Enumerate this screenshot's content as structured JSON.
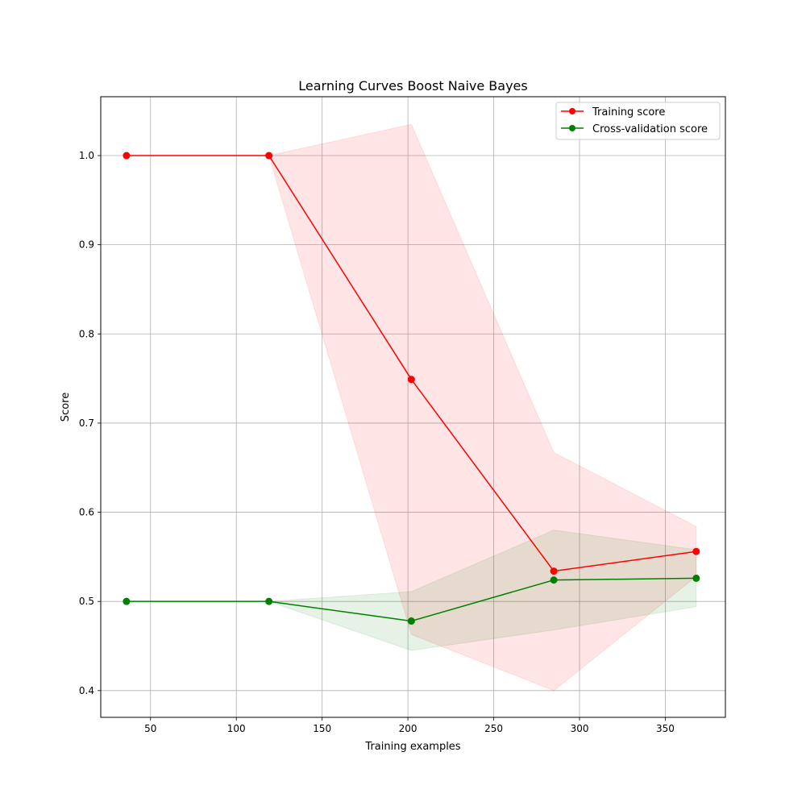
{
  "chart_data": {
    "type": "line",
    "title": "Learning Curves Boost Naive Bayes",
    "xlabel": "Training examples",
    "ylabel": "Score",
    "xlim": [
      21,
      385
    ],
    "ylim": [
      0.37,
      1.066
    ],
    "xticks": [
      50,
      100,
      150,
      200,
      250,
      300,
      350
    ],
    "xtick_labels": [
      "50",
      "100",
      "150",
      "200",
      "250",
      "300",
      "350"
    ],
    "yticks": [
      0.4,
      0.5,
      0.6,
      0.7,
      0.8,
      0.9,
      1.0
    ],
    "ytick_labels": [
      "0.4",
      "0.5",
      "0.6",
      "0.7",
      "0.8",
      "0.9",
      "1.0"
    ],
    "grid": true,
    "legend_position": "top-right",
    "x": [
      36,
      119,
      202,
      285,
      368
    ],
    "series": [
      {
        "name": "Training score",
        "color": "#ff0000",
        "band_color": "#ff0000",
        "values": [
          1.0,
          1.0,
          0.749,
          0.534,
          0.556
        ],
        "band_lower": [
          1.0,
          1.0,
          0.463,
          0.4,
          0.528
        ],
        "band_upper": [
          1.0,
          1.0,
          1.035,
          0.667,
          0.584
        ]
      },
      {
        "name": "Cross-validation score",
        "color": "#008000",
        "band_color": "#008000",
        "values": [
          0.5,
          0.5,
          0.478,
          0.524,
          0.526
        ],
        "band_lower": [
          0.5,
          0.5,
          0.445,
          0.468,
          0.494
        ],
        "band_upper": [
          0.5,
          0.5,
          0.511,
          0.58,
          0.558
        ]
      }
    ]
  }
}
